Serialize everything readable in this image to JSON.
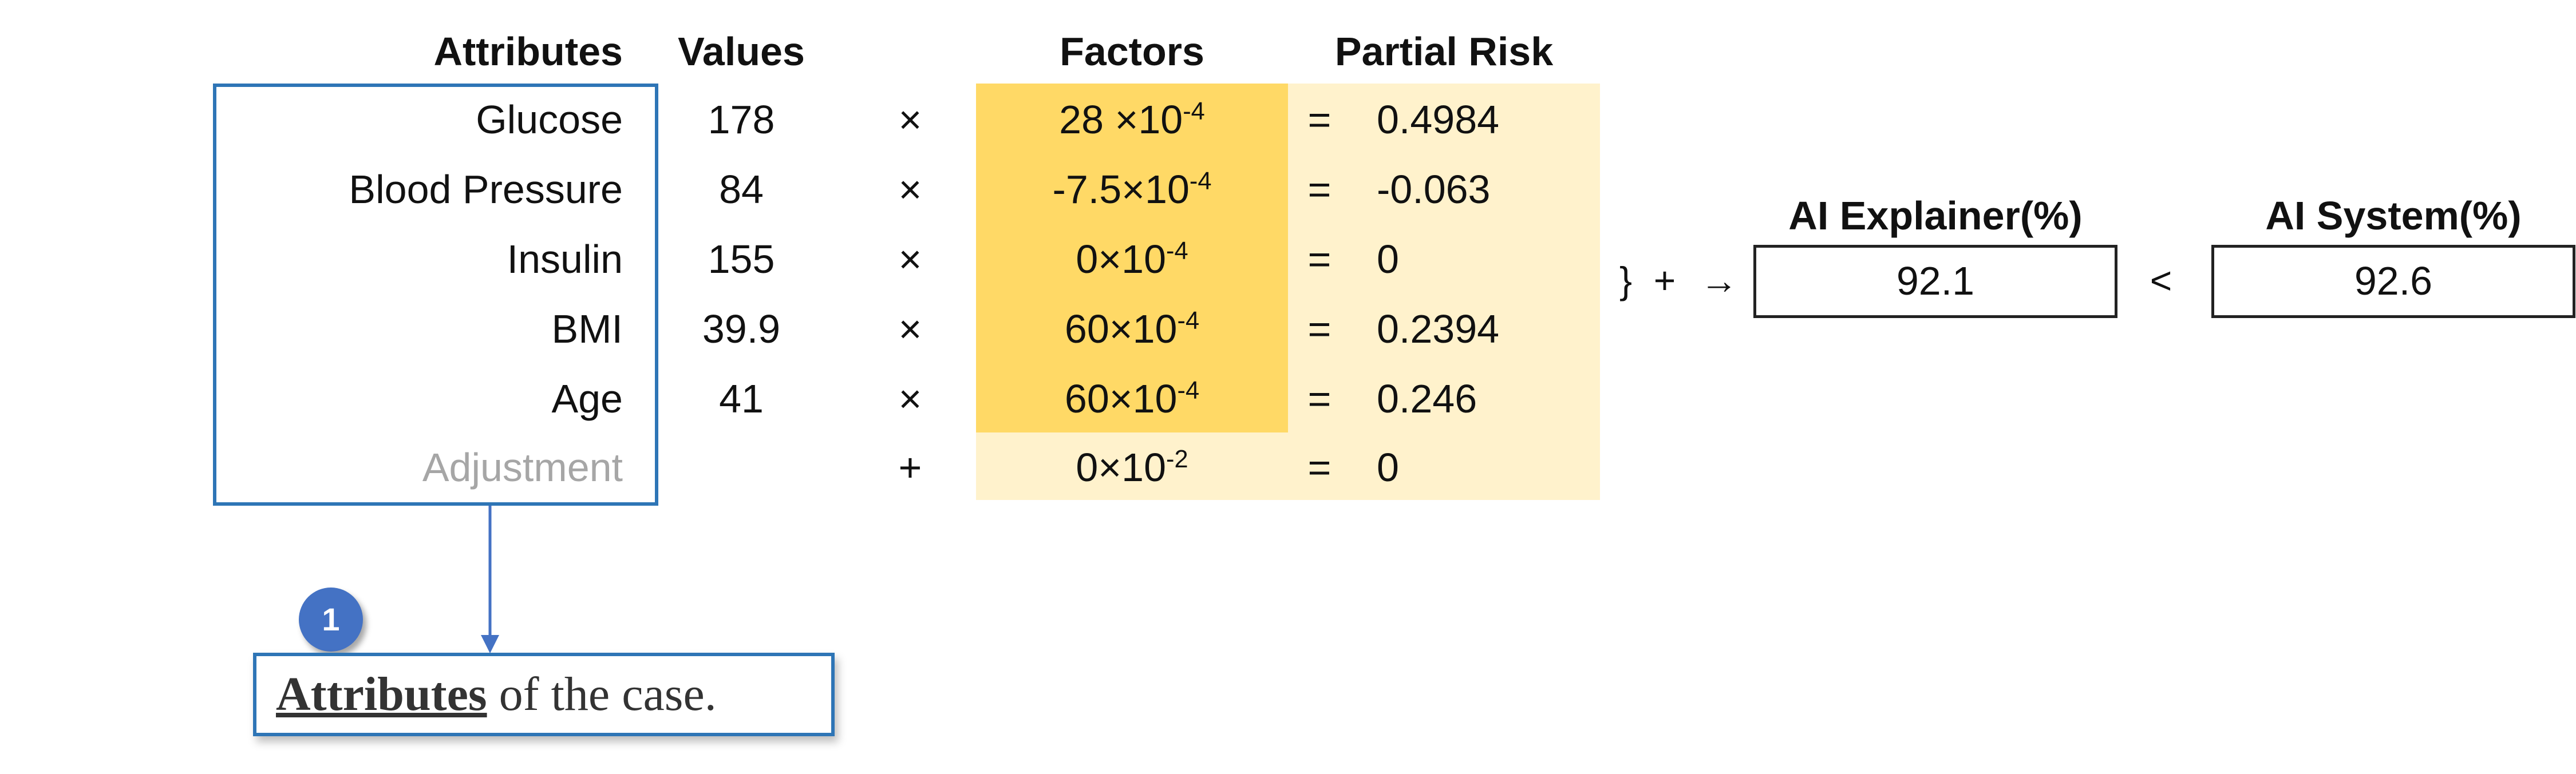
{
  "headers": {
    "attributes": "Attributes",
    "values": "Values",
    "factors": "Factors",
    "partial_risk": "Partial Risk"
  },
  "rows": [
    {
      "attribute": "Glucose",
      "value": "178",
      "operator": "×",
      "factor_base": "28 ×10",
      "factor_exp": "-4",
      "equals": "=",
      "partial_risk": "0.4984"
    },
    {
      "attribute": "Blood Pressure",
      "value": "84",
      "operator": "×",
      "factor_base": "-7.5×10",
      "factor_exp": "-4",
      "equals": "=",
      "partial_risk": "-0.063"
    },
    {
      "attribute": "Insulin",
      "value": "155",
      "operator": "×",
      "factor_base": "0×10",
      "factor_exp": "-4",
      "equals": "=",
      "partial_risk": "0"
    },
    {
      "attribute": "BMI",
      "value": "39.9",
      "operator": "×",
      "factor_base": "60×10",
      "factor_exp": "-4",
      "equals": "=",
      "partial_risk": "0.2394"
    },
    {
      "attribute": "Age",
      "value": "41",
      "operator": "×",
      "factor_base": "60×10",
      "factor_exp": "-4",
      "equals": "=",
      "partial_risk": "0.246"
    }
  ],
  "adjustment": {
    "attribute": "Adjustment",
    "operator": "+",
    "factor_base": "0×10",
    "factor_exp": "-2",
    "equals": "=",
    "partial_risk": "0"
  },
  "summation": {
    "brace": "}",
    "plus": "+",
    "arrow": "→",
    "compare": "<"
  },
  "ai_explainer": {
    "label": "AI Explainer(%)",
    "value": "92.1"
  },
  "ai_system": {
    "label": "AI System(%)",
    "value": "92.6"
  },
  "callout": {
    "number": "1",
    "strong": "Attributes",
    "rest": " of the case."
  },
  "colors": {
    "factor_fill": "#ffd966",
    "risk_fill": "#fff2cc",
    "box_border": "#2e75b6",
    "badge": "#4472c4",
    "muted_text": "#a6a6a6"
  }
}
